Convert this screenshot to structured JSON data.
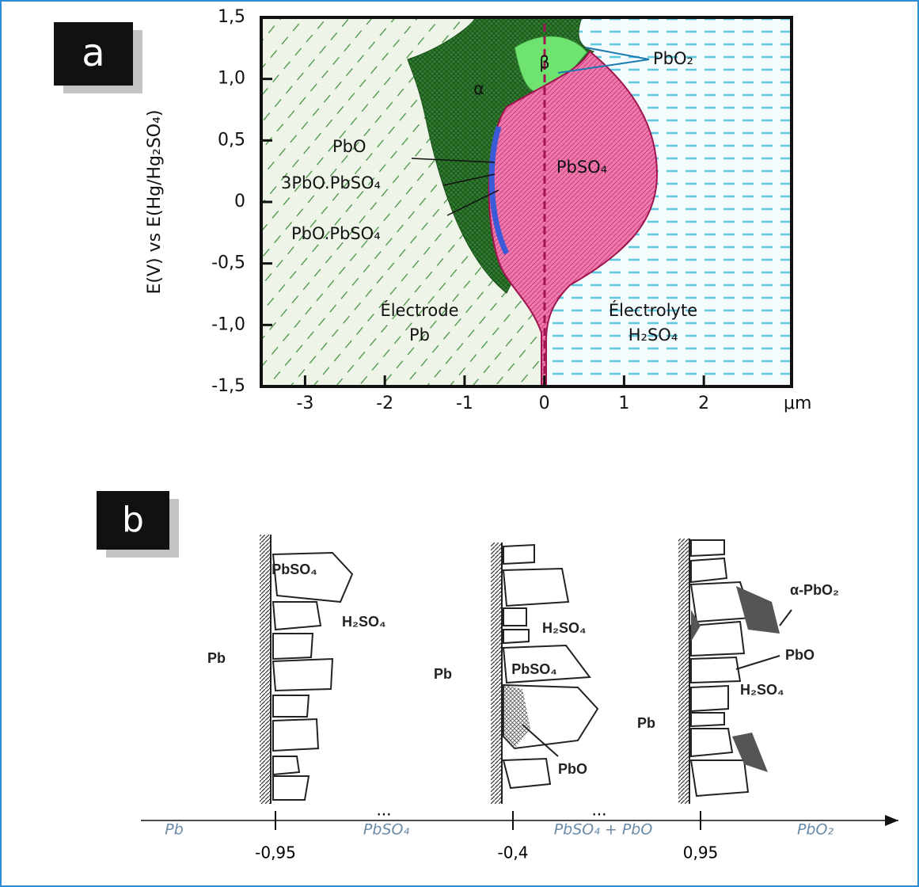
{
  "panel_a": {
    "label": "a",
    "y_axis_label": "E(V) vs E(Hg/Hg₂SO₄)",
    "ylim": [
      -1.5,
      1.5
    ],
    "yticks": [
      {
        "value": 1.5,
        "label": "1,5"
      },
      {
        "value": 1,
        "label": "1,0"
      },
      {
        "value": 0.5,
        "label": "0,5"
      },
      0,
      {
        "value": -0.5,
        "label": "-0,5"
      },
      {
        "value": -1,
        "label": "-1,0"
      },
      {
        "value": -1.5,
        "label": "-1,5"
      }
    ],
    "xlim": [
      -3.55,
      3.1
    ],
    "xticks": [
      -3,
      -2,
      -1,
      0,
      1,
      2
    ],
    "x_unit": "μm",
    "phases": {
      "alpha": "α",
      "beta": "β",
      "pbo2": "PbO₂",
      "pbo": "PbO",
      "tribasic": "3PbO.PbSO₄",
      "monobasic": "PbO.PbSO₄",
      "pbso4": "PbSO₄"
    },
    "electrode": [
      "Électrode",
      "Pb"
    ],
    "electrolyte": [
      "Électrolyte",
      "H₂SO₄"
    ]
  },
  "panel_b": {
    "label": "b",
    "sketches": [
      {
        "pbso4": "PbSO₄",
        "h2so4": "H₂SO₄",
        "pb": "Pb"
      },
      {
        "h2so4": "H₂SO₄",
        "pb": "Pb",
        "pbso4": "PbSO₄",
        "pbo": "PbO"
      },
      {
        "alpha_pbo2": "α-PbO₂",
        "pbo": "PbO",
        "h2so4": "H₂SO₄",
        "pb": "Pb"
      }
    ],
    "axis": {
      "ticks": [
        {
          "value": -0.95,
          "label": "-0,95"
        },
        {
          "value": -0.4,
          "label": "-0,4"
        },
        {
          "value": 0.95,
          "label": "0,95"
        }
      ],
      "zones": [
        "Pb",
        "PbSO₄",
        "PbSO₄ + PbO",
        "PbO₂"
      ],
      "ellipsis": "..."
    }
  }
}
